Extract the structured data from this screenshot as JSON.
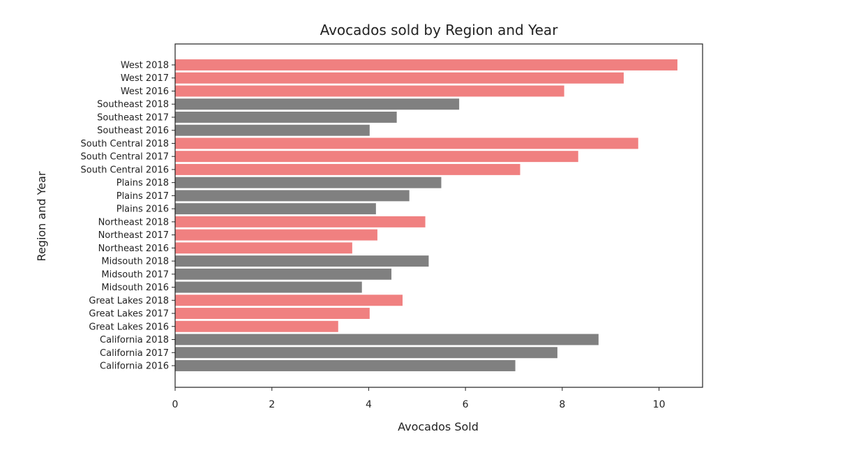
{
  "chart_data": {
    "type": "bar",
    "orientation": "horizontal",
    "title": "Avocados sold by Region and Year",
    "xlabel": "Avocados Sold",
    "ylabel": "Region and Year",
    "xlim": [
      0,
      10.9
    ],
    "xticks": [
      0,
      2,
      4,
      6,
      8,
      10
    ],
    "grid": false,
    "colors": {
      "pink": "#f08080",
      "gray": "#808080",
      "axis": "#222222"
    },
    "categories": [
      "California 2016",
      "California 2017",
      "California 2018",
      "Great Lakes 2016",
      "Great Lakes 2017",
      "Great Lakes 2018",
      "Midsouth 2016",
      "Midsouth 2017",
      "Midsouth 2018",
      "Northeast 2016",
      "Northeast 2017",
      "Northeast 2018",
      "Plains 2016",
      "Plains 2017",
      "Plains 2018",
      "South Central 2016",
      "South Central 2017",
      "South Central 2018",
      "Southeast 2016",
      "Southeast 2017",
      "Southeast 2018",
      "West 2016",
      "West 2017",
      "West 2018"
    ],
    "values": [
      7.03,
      7.9,
      8.75,
      3.37,
      4.02,
      4.7,
      3.86,
      4.47,
      5.24,
      3.66,
      4.18,
      5.17,
      4.15,
      4.84,
      5.5,
      7.13,
      8.33,
      9.57,
      4.02,
      4.58,
      5.87,
      8.04,
      9.27,
      10.38
    ],
    "bar_colors": [
      "gray",
      "gray",
      "gray",
      "pink",
      "pink",
      "pink",
      "gray",
      "gray",
      "gray",
      "pink",
      "pink",
      "pink",
      "gray",
      "gray",
      "gray",
      "pink",
      "pink",
      "pink",
      "gray",
      "gray",
      "gray",
      "pink",
      "pink",
      "pink"
    ]
  }
}
